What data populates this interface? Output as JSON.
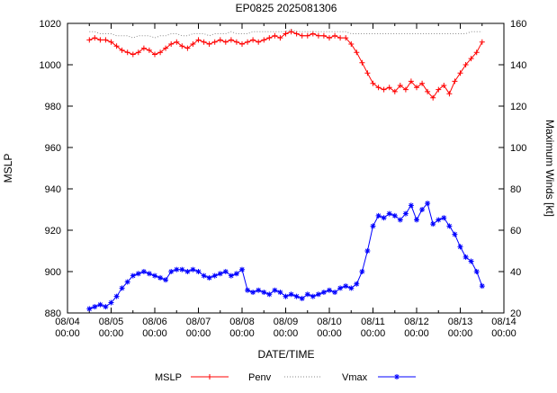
{
  "title": "EP0825 2025081306",
  "chart_data": {
    "type": "line",
    "title": "EP0825 2025081306",
    "xlabel": "DATE/TIME",
    "ylabel_left": "MSLP",
    "ylabel_right": "Maximum Winds [kt]",
    "x_unit": "hours since 2025-08-04 00:00",
    "x_range": [
      0,
      240
    ],
    "x_tick_hours": [
      0,
      24,
      48,
      72,
      96,
      120,
      144,
      168,
      192,
      216,
      240
    ],
    "x_tick_labels": [
      "08/04",
      "08/05",
      "08/06",
      "08/07",
      "08/08",
      "08/09",
      "08/10",
      "08/11",
      "08/12",
      "08/13",
      "08/14"
    ],
    "x_tick_sublabel": "00:00",
    "y_left_range": [
      880,
      1020
    ],
    "y_left_ticks": [
      880,
      900,
      920,
      940,
      960,
      980,
      1000,
      1020
    ],
    "y_right_range": [
      20,
      160
    ],
    "y_right_ticks": [
      20,
      40,
      60,
      80,
      100,
      120,
      140,
      160
    ],
    "grid": false,
    "legend_position": "bottom-center",
    "x_hours": [
      12,
      15,
      18,
      21,
      24,
      27,
      30,
      33,
      36,
      39,
      42,
      45,
      48,
      51,
      54,
      57,
      60,
      63,
      66,
      69,
      72,
      75,
      78,
      81,
      84,
      87,
      90,
      93,
      96,
      99,
      102,
      105,
      108,
      111,
      114,
      117,
      120,
      123,
      126,
      129,
      132,
      135,
      138,
      141,
      144,
      147,
      150,
      153,
      156,
      159,
      162,
      165,
      168,
      171,
      174,
      177,
      180,
      183,
      186,
      189,
      192,
      195,
      198,
      201,
      204,
      207,
      210,
      213,
      216,
      219,
      222,
      225,
      228
    ],
    "series": [
      {
        "name": "MSLP",
        "axis": "left",
        "color": "#ff0000",
        "marker": "plus",
        "line": "solid",
        "values": [
          1012,
          1013,
          1012,
          1012,
          1011,
          1009,
          1007,
          1006,
          1005,
          1006,
          1008,
          1007,
          1005,
          1006,
          1008,
          1010,
          1011,
          1009,
          1008,
          1010,
          1012,
          1011,
          1010,
          1011,
          1012,
          1011,
          1012,
          1011,
          1010,
          1011,
          1012,
          1011,
          1012,
          1013,
          1014,
          1013,
          1015,
          1016,
          1015,
          1014,
          1014,
          1015,
          1014,
          1014,
          1013,
          1014,
          1013,
          1013,
          1010,
          1006,
          1001,
          996,
          991,
          989,
          988,
          989,
          987,
          990,
          988,
          992,
          989,
          991,
          987,
          984,
          988,
          990,
          986,
          992,
          996,
          1000,
          1003,
          1006,
          1011
        ]
      },
      {
        "name": "Penv",
        "axis": "left",
        "color": "#8a8a8a",
        "marker": "none",
        "line": "dotted",
        "values": [
          1016,
          1016,
          1015,
          1015,
          1015,
          1014,
          1014,
          1014,
          1013,
          1014,
          1014,
          1014,
          1013,
          1014,
          1014,
          1015,
          1015,
          1014,
          1014,
          1015,
          1015,
          1015,
          1014,
          1015,
          1015,
          1015,
          1016,
          1015,
          1015,
          1015,
          1016,
          1016,
          1016,
          1016,
          1016,
          1016,
          1016,
          1017,
          1016,
          1016,
          1016,
          1016,
          1016,
          1016,
          1016,
          1016,
          1016,
          1016,
          1015,
          1015,
          1015,
          1015,
          1015,
          1015,
          1015,
          1015,
          1015,
          1015,
          1015,
          1015,
          1015,
          1015,
          1015,
          1015,
          1015,
          1015,
          1015,
          1015,
          1015,
          1015,
          1016,
          1016,
          1016
        ]
      },
      {
        "name": "Vmax",
        "axis": "right",
        "color": "#0000ff",
        "marker": "star",
        "line": "solid",
        "values": [
          22,
          23,
          24,
          23,
          25,
          28,
          32,
          35,
          38,
          39,
          40,
          39,
          38,
          37,
          36,
          40,
          41,
          41,
          40,
          41,
          40,
          38,
          37,
          38,
          39,
          40,
          38,
          39,
          41,
          31,
          30,
          31,
          30,
          29,
          31,
          30,
          28,
          29,
          28,
          27,
          29,
          28,
          29,
          30,
          31,
          30,
          32,
          33,
          32,
          34,
          40,
          50,
          62,
          67,
          66,
          68,
          67,
          65,
          68,
          72,
          65,
          70,
          73,
          63,
          65,
          66,
          62,
          58,
          52,
          47,
          45,
          40,
          33
        ]
      }
    ]
  }
}
